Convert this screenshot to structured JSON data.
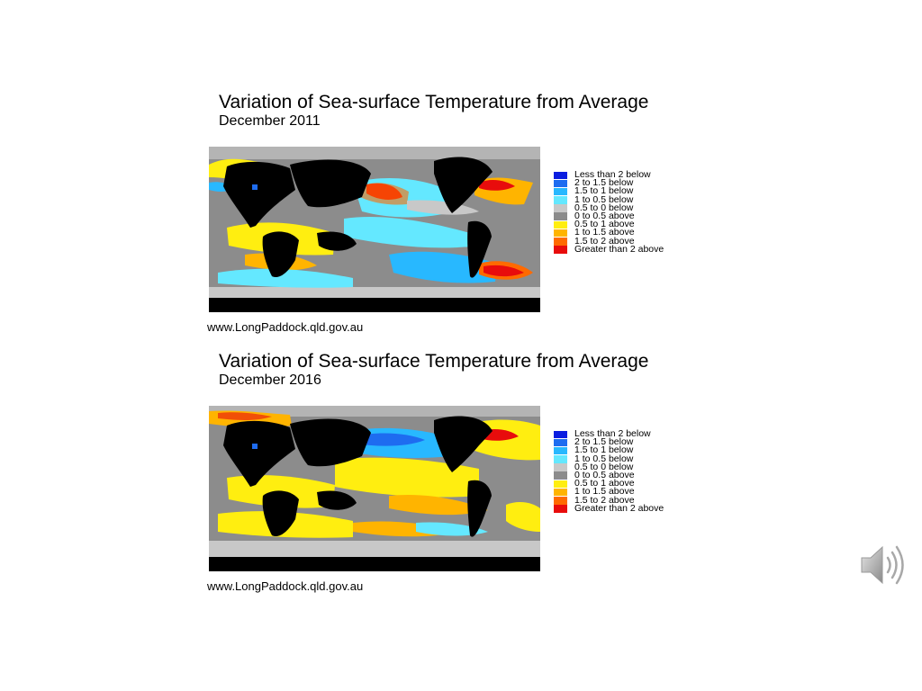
{
  "panels": [
    {
      "title": "Variation of Sea-surface Temperature from Average",
      "subtitle": "December 2011",
      "source": "www.LongPaddock.qld.gov.au",
      "legend": [
        {
          "label": "Less than 2 below",
          "color": "#0a1de0"
        },
        {
          "label": "2 to 1.5 below",
          "color": "#1e6cf0"
        },
        {
          "label": "1.5 to 1 below",
          "color": "#28b8ff"
        },
        {
          "label": "1 to 0.5 below",
          "color": "#64e8ff"
        },
        {
          "label": "0.5 to 0 below",
          "color": "#c8c8c8"
        },
        {
          "label": "0 to 0.5 above",
          "color": "#8c8c8c"
        },
        {
          "label": "0.5 to 1 above",
          "color": "#ffee10"
        },
        {
          "label": "1 to 1.5 above",
          "color": "#ffb400"
        },
        {
          "label": "1.5 to 2 above",
          "color": "#ff6a00"
        },
        {
          "label": "Greater than 2 above",
          "color": "#e80c0c"
        }
      ]
    },
    {
      "title": "Variation of Sea-surface Temperature from Average",
      "subtitle": "December 2016",
      "source": "www.LongPaddock.qld.gov.au",
      "legend": [
        {
          "label": "Less than 2 below",
          "color": "#0a1de0"
        },
        {
          "label": "2 to 1.5 below",
          "color": "#1e6cf0"
        },
        {
          "label": "1.5 to 1 below",
          "color": "#28b8ff"
        },
        {
          "label": "1 to 0.5 below",
          "color": "#64e8ff"
        },
        {
          "label": "0.5 to 0 below",
          "color": "#c8c8c8"
        },
        {
          "label": "0 to 0.5 above",
          "color": "#8c8c8c"
        },
        {
          "label": "0.5 to 1 above",
          "color": "#ffee10"
        },
        {
          "label": "1 to 1.5 above",
          "color": "#ffb400"
        },
        {
          "label": "1.5 to 2 above",
          "color": "#ff6a00"
        },
        {
          "label": "Greater than 2 above",
          "color": "#e80c0c"
        }
      ]
    }
  ],
  "colors": {
    "land": "#000000",
    "ice": "#b4b4b4"
  },
  "audio": {
    "icon": "speaker-icon"
  }
}
